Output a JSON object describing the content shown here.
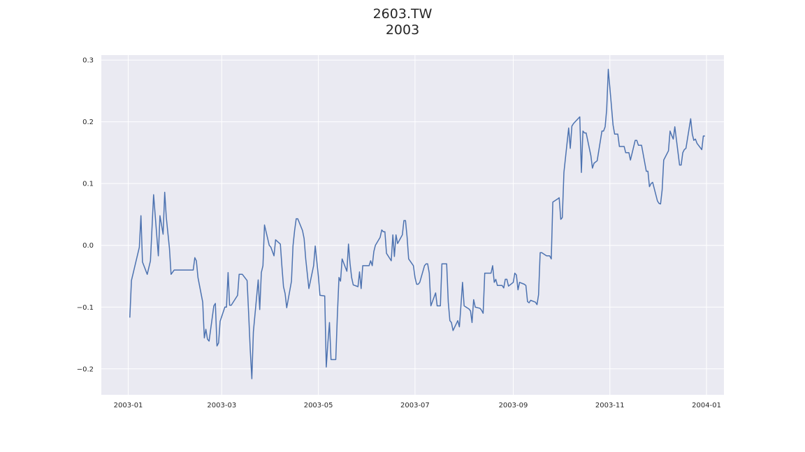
{
  "chart_data": {
    "type": "line",
    "title": "2603.TW",
    "subtitle": "2003",
    "xlabel": "",
    "ylabel": "",
    "xlim": [
      "2002-12-15",
      "2004-01-12"
    ],
    "ylim": [
      -0.242,
      0.308
    ],
    "grid": true,
    "x_ticks": [
      "2003-01",
      "2003-03",
      "2003-05",
      "2003-07",
      "2003-09",
      "2003-11",
      "2004-01"
    ],
    "y_ticks": [
      -0.2,
      -0.1,
      0.0,
      0.1,
      0.2,
      0.3
    ],
    "y_tick_labels": [
      "−0.2",
      "−0.1",
      "0.0",
      "0.1",
      "0.2",
      "0.3"
    ],
    "colors": {
      "line": "#4c72b0",
      "plot_bg": "#eaeaf2",
      "grid": "#ffffff"
    },
    "series": [
      {
        "x": [
          "2003-01-02",
          "2003-01-03",
          "2003-01-08",
          "2003-01-09",
          "2003-01-10",
          "2003-01-13",
          "2003-01-15",
          "2003-01-17",
          "2003-01-20",
          "2003-01-21",
          "2003-01-23",
          "2003-01-24",
          "2003-01-25",
          "2003-01-27",
          "2003-01-28",
          "2003-01-30",
          "2003-02-03",
          "2003-02-04",
          "2003-02-06",
          "2003-02-10",
          "2003-02-11",
          "2003-02-12",
          "2003-02-13",
          "2003-02-14",
          "2003-02-17",
          "2003-02-18",
          "2003-02-19",
          "2003-02-20",
          "2003-02-21",
          "2003-02-24",
          "2003-02-25",
          "2003-02-26",
          "2003-02-27",
          "2003-02-28",
          "2003-03-03",
          "2003-03-04",
          "2003-03-05",
          "2003-03-06",
          "2003-03-07",
          "2003-03-11",
          "2003-03-12",
          "2003-03-14",
          "2003-03-17",
          "2003-03-18",
          "2003-03-19",
          "2003-03-20",
          "2003-03-21",
          "2003-03-24",
          "2003-03-25",
          "2003-03-26",
          "2003-03-27",
          "2003-03-28",
          "2003-03-31",
          "2003-04-01",
          "2003-04-03",
          "2003-04-04",
          "2003-04-07",
          "2003-04-08",
          "2003-04-09",
          "2003-04-10",
          "2003-04-11",
          "2003-04-14",
          "2003-04-15",
          "2003-04-16",
          "2003-04-17",
          "2003-04-18",
          "2003-04-21",
          "2003-04-22",
          "2003-04-23",
          "2003-04-25",
          "2003-04-28",
          "2003-04-29",
          "2003-04-30",
          "2003-05-01",
          "2003-05-02",
          "2003-05-05",
          "2003-05-06",
          "2003-05-07",
          "2003-05-08",
          "2003-05-09",
          "2003-05-12",
          "2003-05-13",
          "2003-05-14",
          "2003-05-15",
          "2003-05-16",
          "2003-05-19",
          "2003-05-20",
          "2003-05-21",
          "2003-05-22",
          "2003-05-23",
          "2003-05-26",
          "2003-05-27",
          "2003-05-28",
          "2003-05-29",
          "2003-05-30",
          "2003-06-02",
          "2003-06-03",
          "2003-06-04",
          "2003-06-05",
          "2003-06-06",
          "2003-06-09",
          "2003-06-10",
          "2003-06-11",
          "2003-06-12",
          "2003-06-13",
          "2003-06-16",
          "2003-06-17",
          "2003-06-18",
          "2003-06-19",
          "2003-06-20",
          "2003-06-23",
          "2003-06-24",
          "2003-06-25",
          "2003-06-26",
          "2003-06-27",
          "2003-06-30",
          "2003-07-01",
          "2003-07-02",
          "2003-07-03",
          "2003-07-04",
          "2003-07-07",
          "2003-07-08",
          "2003-07-09",
          "2003-07-10",
          "2003-07-11",
          "2003-07-14",
          "2003-07-15",
          "2003-07-16",
          "2003-07-17",
          "2003-07-18",
          "2003-07-21",
          "2003-07-22",
          "2003-07-23",
          "2003-07-24",
          "2003-07-25",
          "2003-07-28",
          "2003-07-29",
          "2003-07-30",
          "2003-07-31",
          "2003-08-01",
          "2003-08-04",
          "2003-08-05",
          "2003-08-06",
          "2003-08-07",
          "2003-08-08",
          "2003-08-11",
          "2003-08-12",
          "2003-08-13",
          "2003-08-14",
          "2003-08-15",
          "2003-08-18",
          "2003-08-19",
          "2003-08-20",
          "2003-08-21",
          "2003-08-22",
          "2003-08-25",
          "2003-08-26",
          "2003-08-27",
          "2003-08-28",
          "2003-08-29",
          "2003-09-01",
          "2003-09-02",
          "2003-09-03",
          "2003-09-04",
          "2003-09-05",
          "2003-09-08",
          "2003-09-09",
          "2003-09-10",
          "2003-09-11",
          "2003-09-12",
          "2003-09-15",
          "2003-09-16",
          "2003-09-17",
          "2003-09-18",
          "2003-09-19",
          "2003-09-22",
          "2003-09-23",
          "2003-09-24",
          "2003-09-25",
          "2003-09-26",
          "2003-09-29",
          "2003-09-30",
          "2003-10-01",
          "2003-10-02",
          "2003-10-03",
          "2003-10-06",
          "2003-10-07",
          "2003-10-08",
          "2003-10-09",
          "2003-10-13",
          "2003-10-14",
          "2003-10-15",
          "2003-10-16",
          "2003-10-17",
          "2003-10-20",
          "2003-10-21",
          "2003-10-22",
          "2003-10-23",
          "2003-10-24",
          "2003-10-27",
          "2003-10-28",
          "2003-10-29",
          "2003-10-30",
          "2003-10-31",
          "2003-11-03",
          "2003-11-04",
          "2003-11-05",
          "2003-11-06",
          "2003-11-07",
          "2003-11-10",
          "2003-11-11",
          "2003-11-12",
          "2003-11-13",
          "2003-11-14",
          "2003-11-17",
          "2003-11-18",
          "2003-11-19",
          "2003-11-20",
          "2003-11-21",
          "2003-11-24",
          "2003-11-25",
          "2003-11-26",
          "2003-11-27",
          "2003-11-28",
          "2003-12-01",
          "2003-12-02",
          "2003-12-03",
          "2003-12-04",
          "2003-12-05",
          "2003-12-08",
          "2003-12-09",
          "2003-12-10",
          "2003-12-11",
          "2003-12-12",
          "2003-12-15",
          "2003-12-16",
          "2003-12-17",
          "2003-12-18",
          "2003-12-19",
          "2003-12-22",
          "2003-12-23",
          "2003-12-24",
          "2003-12-25",
          "2003-12-26",
          "2003-12-29",
          "2003-12-30",
          "2003-12-31"
        ],
        "y": [
          -0.117,
          -0.057,
          -0.003,
          0.048,
          -0.027,
          -0.047,
          -0.025,
          0.082,
          -0.017,
          0.048,
          0.018,
          0.086,
          0.045,
          -0.005,
          -0.047,
          -0.04,
          -0.04,
          -0.04,
          -0.04,
          -0.04,
          -0.04,
          -0.02,
          -0.025,
          -0.052,
          -0.092,
          -0.15,
          -0.136,
          -0.152,
          -0.155,
          -0.098,
          -0.094,
          -0.163,
          -0.158,
          -0.123,
          -0.1,
          -0.1,
          -0.044,
          -0.097,
          -0.097,
          -0.081,
          -0.047,
          -0.047,
          -0.057,
          -0.11,
          -0.169,
          -0.216,
          -0.14,
          -0.056,
          -0.104,
          -0.044,
          -0.033,
          0.033,
          0.0,
          -0.003,
          -0.017,
          0.009,
          0.002,
          -0.035,
          -0.067,
          -0.078,
          -0.101,
          -0.058,
          -0.001,
          0.024,
          0.043,
          0.043,
          0.024,
          0.011,
          -0.022,
          -0.07,
          -0.033,
          -0.001,
          -0.025,
          -0.05,
          -0.081,
          -0.082,
          -0.197,
          -0.158,
          -0.125,
          -0.185,
          -0.185,
          -0.113,
          -0.052,
          -0.058,
          -0.022,
          -0.042,
          0.002,
          -0.029,
          -0.052,
          -0.064,
          -0.067,
          -0.043,
          -0.07,
          -0.033,
          -0.033,
          -0.033,
          -0.025,
          -0.033,
          -0.01,
          0.0,
          0.013,
          0.025,
          0.022,
          0.022,
          -0.013,
          -0.025,
          0.017,
          -0.018,
          0.017,
          0.003,
          0.017,
          0.04,
          0.04,
          0.013,
          -0.022,
          -0.033,
          -0.052,
          -0.063,
          -0.063,
          -0.06,
          -0.033,
          -0.03,
          -0.03,
          -0.045,
          -0.098,
          -0.077,
          -0.098,
          -0.098,
          -0.098,
          -0.03,
          -0.03,
          -0.092,
          -0.122,
          -0.125,
          -0.138,
          -0.122,
          -0.132,
          -0.098,
          -0.06,
          -0.098,
          -0.103,
          -0.106,
          -0.125,
          -0.088,
          -0.1,
          -0.102,
          -0.105,
          -0.11,
          -0.045,
          -0.045,
          -0.045,
          -0.033,
          -0.06,
          -0.055,
          -0.065,
          -0.065,
          -0.069,
          -0.055,
          -0.055,
          -0.066,
          -0.06,
          -0.045,
          -0.048,
          -0.072,
          -0.06,
          -0.063,
          -0.065,
          -0.091,
          -0.093,
          -0.089,
          -0.092,
          -0.096,
          -0.08,
          -0.012,
          -0.012,
          -0.017,
          -0.017,
          -0.017,
          -0.022,
          0.07,
          0.075,
          0.077,
          0.042,
          0.045,
          0.118,
          0.19,
          0.157,
          0.193,
          0.197,
          0.208,
          0.118,
          0.185,
          0.182,
          0.182,
          0.145,
          0.125,
          0.133,
          0.135,
          0.137,
          0.185,
          0.185,
          0.192,
          0.22,
          0.285,
          0.195,
          0.18,
          0.18,
          0.18,
          0.16,
          0.16,
          0.15,
          0.15,
          0.15,
          0.138,
          0.17,
          0.17,
          0.162,
          0.162,
          0.162,
          0.12,
          0.12,
          0.095,
          0.1,
          0.102,
          0.072,
          0.068,
          0.067,
          0.09,
          0.138,
          0.153,
          0.185,
          0.178,
          0.172,
          0.192,
          0.13,
          0.13,
          0.15,
          0.155,
          0.157,
          0.205,
          0.18,
          0.17,
          0.172,
          0.165,
          0.155,
          0.177,
          0.177
        ]
      }
    ]
  }
}
